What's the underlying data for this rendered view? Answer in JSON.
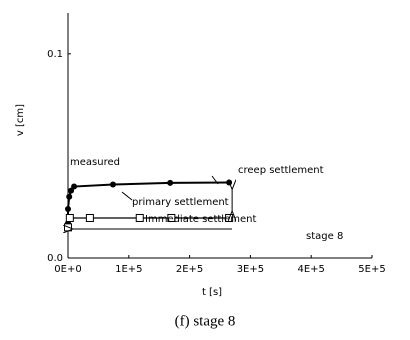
{
  "chart_data": {
    "type": "line",
    "xlabel": "t [s]",
    "ylabel": "v [cm]",
    "caption": "(f) stage 8",
    "xlim": [
      0,
      500000
    ],
    "ylim": [
      0,
      0.12
    ],
    "xticks": [
      {
        "value": 0,
        "label": "0E+0"
      },
      {
        "value": 100000,
        "label": "1E+5"
      },
      {
        "value": 200000,
        "label": "2E+5"
      },
      {
        "value": 300000,
        "label": "3E+5"
      },
      {
        "value": 400000,
        "label": "4E+5"
      },
      {
        "value": 500000,
        "label": "5E+5"
      }
    ],
    "yticks": [
      {
        "value": 0,
        "label": "0.0"
      },
      0.1
    ],
    "series": [
      {
        "name": "measured",
        "color": "#000000",
        "marker": "filled",
        "x": [
          0,
          0,
          2000,
          5000,
          10000,
          74000,
          168000,
          265000
        ],
        "values": [
          0.017,
          0.024,
          0.03,
          0.033,
          0.035,
          0.036,
          0.0368,
          0.037
        ]
      },
      {
        "name": "primary settlement",
        "color": "#000000",
        "marker": "open-square",
        "x": [
          0,
          3000,
          36000,
          118000,
          170000,
          265000
        ],
        "values": [
          0.015,
          0.0196,
          0.0196,
          0.0196,
          0.0196,
          0.0196
        ]
      }
    ],
    "annotations": [
      "creep settlement",
      "Immediate settlement",
      "stage 8"
    ]
  }
}
